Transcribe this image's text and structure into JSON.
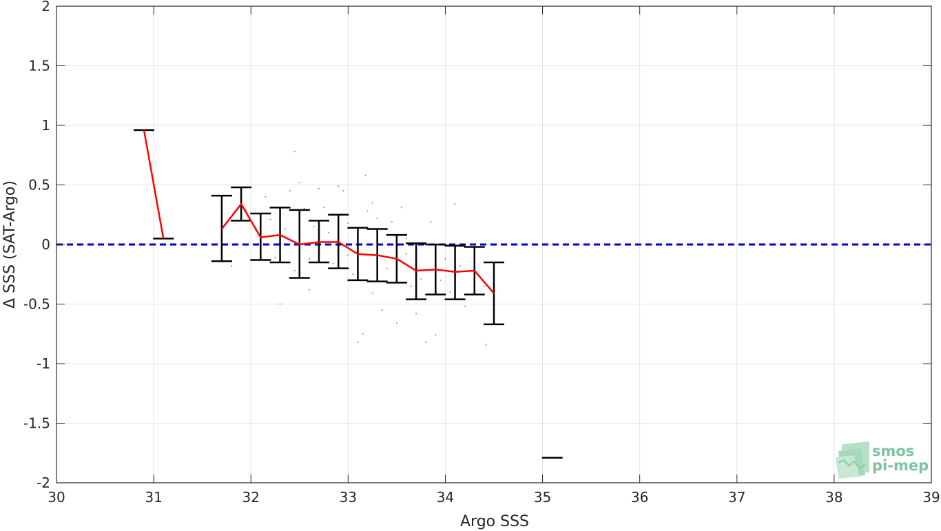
{
  "chart_data": {
    "type": "scatter",
    "xlabel": "Argo SSS",
    "ylabel": "Δ SSS (SAT-Argo)",
    "xlim": [
      30,
      39
    ],
    "ylim": [
      -2,
      2
    ],
    "xticks": [
      "30",
      "31",
      "32",
      "33",
      "34",
      "35",
      "36",
      "37",
      "38",
      "39"
    ],
    "yticks": [
      "-2",
      "-1.5",
      "-1",
      "-0.5",
      "0",
      "0.5",
      "1",
      "1.5",
      "2"
    ],
    "grid": true,
    "zero_line": {
      "y": 0,
      "color": "#0000cc",
      "style": "dashed"
    },
    "mean_line": {
      "color": "#ff0000",
      "x": [
        31.7,
        31.9,
        32.1,
        32.3,
        32.5,
        32.7,
        32.9,
        33.1,
        33.3,
        33.5,
        33.7,
        33.9,
        34.1,
        34.3,
        34.5
      ],
      "y": [
        0.13,
        0.34,
        0.06,
        0.08,
        0.0,
        0.02,
        0.02,
        -0.08,
        -0.09,
        -0.12,
        -0.22,
        -0.21,
        -0.23,
        -0.22,
        -0.41
      ]
    },
    "isolated_segment": {
      "x": [
        30.9,
        31.1
      ],
      "y": [
        0.96,
        0.05
      ],
      "color": "#ff0000"
    },
    "error_bars": [
      {
        "x": 30.9,
        "low": 0.96,
        "high": 0.96,
        "mean": 0.96
      },
      {
        "x": 31.1,
        "low": 0.05,
        "high": 0.05,
        "mean": 0.05
      },
      {
        "x": 31.7,
        "low": -0.14,
        "high": 0.41,
        "mean": 0.13
      },
      {
        "x": 31.9,
        "low": 0.2,
        "high": 0.48,
        "mean": 0.34
      },
      {
        "x": 32.1,
        "low": -0.13,
        "high": 0.26,
        "mean": 0.06
      },
      {
        "x": 32.3,
        "low": -0.15,
        "high": 0.31,
        "mean": 0.08
      },
      {
        "x": 32.5,
        "low": -0.28,
        "high": 0.29,
        "mean": 0.0
      },
      {
        "x": 32.7,
        "low": -0.15,
        "high": 0.2,
        "mean": 0.02
      },
      {
        "x": 32.9,
        "low": -0.2,
        "high": 0.25,
        "mean": 0.02
      },
      {
        "x": 33.1,
        "low": -0.3,
        "high": 0.14,
        "mean": -0.08
      },
      {
        "x": 33.3,
        "low": -0.31,
        "high": 0.13,
        "mean": -0.09
      },
      {
        "x": 33.5,
        "low": -0.32,
        "high": 0.08,
        "mean": -0.12
      },
      {
        "x": 33.7,
        "low": -0.46,
        "high": 0.01,
        "mean": -0.22
      },
      {
        "x": 33.9,
        "low": -0.42,
        "high": 0.0,
        "mean": -0.21
      },
      {
        "x": 34.1,
        "low": -0.46,
        "high": -0.01,
        "mean": -0.23
      },
      {
        "x": 34.3,
        "low": -0.42,
        "high": -0.02,
        "mean": -0.22
      },
      {
        "x": 34.5,
        "low": -0.67,
        "high": -0.15,
        "mean": -0.41
      },
      {
        "x": 35.1,
        "low": -1.79,
        "high": -1.79,
        "mean": -1.79
      }
    ],
    "scatter_series": {
      "name": "",
      "color": "#999999",
      "points": [
        [
          31.95,
          0.29
        ],
        [
          32.05,
          0.12
        ],
        [
          32.1,
          -0.05
        ],
        [
          32.15,
          0.4
        ],
        [
          32.2,
          0.21
        ],
        [
          32.25,
          -0.11
        ],
        [
          32.3,
          -0.5
        ],
        [
          32.35,
          0.13
        ],
        [
          32.4,
          0.45
        ],
        [
          32.45,
          -0.22
        ],
        [
          32.45,
          0.78
        ],
        [
          32.5,
          0.52
        ],
        [
          32.55,
          0.3
        ],
        [
          32.6,
          -0.12
        ],
        [
          32.65,
          0.15
        ],
        [
          32.7,
          -0.08
        ],
        [
          32.75,
          0.31
        ],
        [
          32.8,
          0.1
        ],
        [
          32.85,
          -0.16
        ],
        [
          32.9,
          0.49
        ],
        [
          32.95,
          0.45
        ],
        [
          33.0,
          0.18
        ],
        [
          33.05,
          -0.25
        ],
        [
          33.1,
          -0.82
        ],
        [
          33.15,
          -0.75
        ],
        [
          33.18,
          0.58
        ],
        [
          33.2,
          0.28
        ],
        [
          33.25,
          -0.41
        ],
        [
          33.3,
          0.22
        ],
        [
          33.35,
          -0.55
        ],
        [
          33.4,
          -0.2
        ],
        [
          33.45,
          0.19
        ],
        [
          33.5,
          -0.66
        ],
        [
          33.55,
          0.31
        ],
        [
          33.6,
          -0.08
        ],
        [
          33.65,
          -0.35
        ],
        [
          33.7,
          -0.58
        ],
        [
          33.75,
          -0.29
        ],
        [
          33.8,
          -0.82
        ],
        [
          33.85,
          0.19
        ],
        [
          33.9,
          -0.76
        ],
        [
          33.95,
          -0.3
        ],
        [
          34.0,
          -0.12
        ],
        [
          34.05,
          -0.4
        ],
        [
          34.1,
          0.34
        ],
        [
          34.15,
          -0.18
        ],
        [
          34.2,
          -0.52
        ],
        [
          34.3,
          -0.08
        ],
        [
          34.4,
          -0.35
        ],
        [
          34.42,
          -0.84
        ],
        [
          31.8,
          -0.18
        ],
        [
          32.6,
          -0.38
        ],
        [
          32.7,
          0.47
        ],
        [
          33.0,
          -0.09
        ],
        [
          33.25,
          0.35
        ],
        [
          33.6,
          0.05
        ]
      ]
    }
  },
  "logo": {
    "line1": "smos",
    "line2": "pi-mep"
  }
}
